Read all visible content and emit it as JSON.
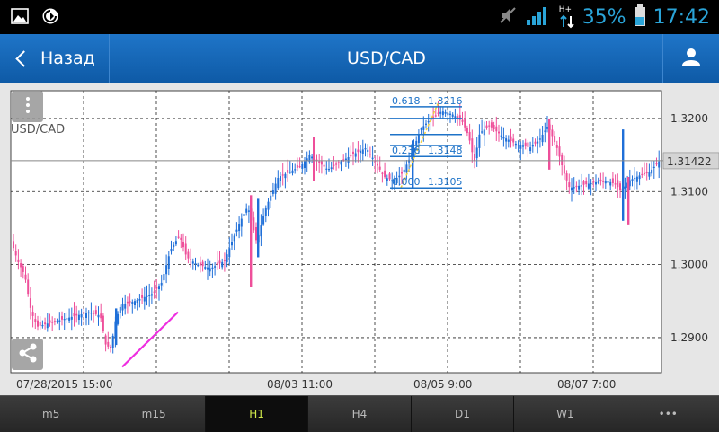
{
  "status_bar": {
    "battery_percent": "35%",
    "time": "17:42",
    "network": "H+"
  },
  "navbar": {
    "back_label": "Назад",
    "title": "USD/CAD"
  },
  "chart_data": {
    "type": "candlestick",
    "symbol": "USD/CAD",
    "ylim": [
      1.2852,
      1.3238
    ],
    "y_ticks": [
      "1.3200",
      "1.3100",
      "1.3000",
      "1.2900"
    ],
    "current_price": "1.31422",
    "x_labels": [
      "07/28/2015 15:00",
      "08/03 11:00",
      "08/05 9:00",
      "08/07 7:00"
    ],
    "fibonacci": [
      {
        "level": "0.618",
        "price": "1.3216"
      },
      {
        "level": "0.236",
        "price": "1.3148"
      },
      {
        "level": "0.000",
        "price": "1.3105"
      }
    ],
    "trendline": {
      "from": [
        "07/30",
        1.286
      ],
      "to": [
        "07/31",
        1.2935
      ]
    },
    "colors": {
      "bull": "#1f6fd8",
      "bear": "#ee4f9a",
      "trendline": "#ee2ee0",
      "fib": "#1e73c8",
      "current_price_line": "#888888"
    }
  },
  "timeframes": [
    "m5",
    "m15",
    "H1",
    "H4",
    "D1",
    "W1",
    "•••"
  ],
  "active_timeframe": "H1"
}
